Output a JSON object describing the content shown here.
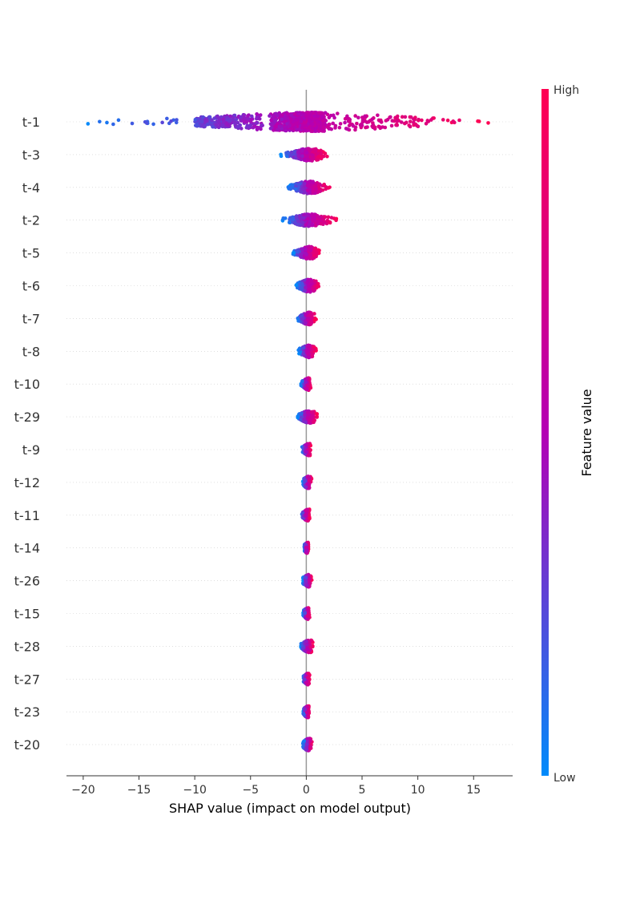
{
  "chart_data": {
    "type": "scatter",
    "subtype": "shap-beeswarm",
    "xlabel": "SHAP value (impact on model output)",
    "xlim": [
      -21.5,
      18.5
    ],
    "xticks": [
      -20,
      -15,
      -10,
      -5,
      0,
      5,
      10,
      15
    ],
    "grid": false,
    "colorbar": {
      "title": "Feature value",
      "high_label": "High",
      "low_label": "Low",
      "high_color": "#ff0052",
      "mid_color": "#b400b4",
      "low_color": "#008bfb"
    },
    "features": [
      {
        "name": "t-1",
        "min": -19.6,
        "max": 17.0
      },
      {
        "name": "t-3",
        "min": -2.4,
        "max": 1.9
      },
      {
        "name": "t-4",
        "min": -1.7,
        "max": 2.2
      },
      {
        "name": "t-2",
        "min": -2.2,
        "max": 2.8
      },
      {
        "name": "t-5",
        "min": -1.3,
        "max": 1.2
      },
      {
        "name": "t-6",
        "min": -0.9,
        "max": 1.3
      },
      {
        "name": "t-7",
        "min": -0.9,
        "max": 0.9
      },
      {
        "name": "t-8",
        "min": -0.7,
        "max": 0.9
      },
      {
        "name": "t-10",
        "min": -0.5,
        "max": 0.4
      },
      {
        "name": "t-29",
        "min": -0.8,
        "max": 1.0
      },
      {
        "name": "t-9",
        "min": -0.4,
        "max": 0.4
      },
      {
        "name": "t-12",
        "min": -0.3,
        "max": 0.5
      },
      {
        "name": "t-11",
        "min": -0.5,
        "max": 0.3
      },
      {
        "name": "t-14",
        "min": -0.2,
        "max": 0.2
      },
      {
        "name": "t-26",
        "min": -0.3,
        "max": 0.5
      },
      {
        "name": "t-15",
        "min": -0.3,
        "max": 0.3
      },
      {
        "name": "t-28",
        "min": -0.5,
        "max": 0.6
      },
      {
        "name": "t-27",
        "min": -0.3,
        "max": 0.3
      },
      {
        "name": "t-23",
        "min": -0.3,
        "max": 0.3
      },
      {
        "name": "t-20",
        "min": -0.3,
        "max": 0.6
      }
    ]
  }
}
